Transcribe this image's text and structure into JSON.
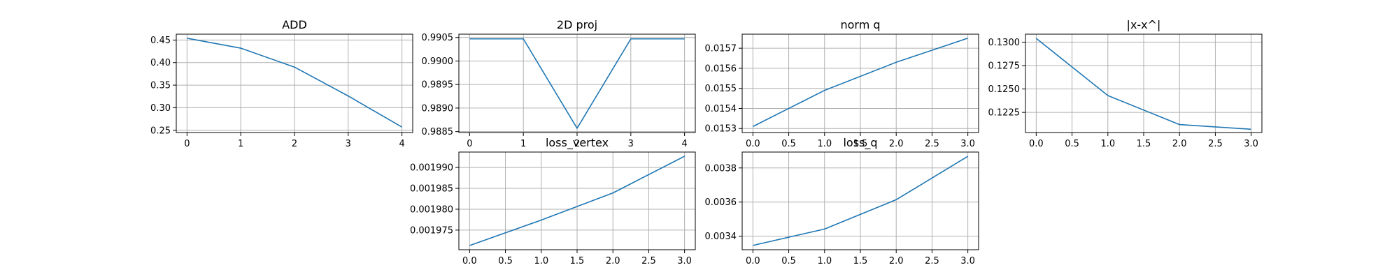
{
  "colors": {
    "series": "#1f77b4",
    "grid": "#b0b0b0",
    "axes": "#000000",
    "background": "#ffffff"
  },
  "chart_data": [
    {
      "type": "line",
      "title": "ADD",
      "grid": true,
      "x": [
        0,
        1,
        2,
        3,
        4
      ],
      "y": [
        0.454,
        0.432,
        0.39,
        0.326,
        0.257
      ],
      "xlim": [
        -0.2,
        4.2
      ],
      "ylim": [
        0.245,
        0.463
      ],
      "xticks": [
        0,
        1,
        2,
        3,
        4
      ],
      "xtick_labels": [
        "0",
        "1",
        "2",
        "3",
        "4"
      ],
      "yticks": [
        0.25,
        0.3,
        0.35,
        0.4,
        0.45
      ],
      "ytick_labels": [
        "0.25",
        "0.30",
        "0.35",
        "0.40",
        "0.45"
      ]
    },
    {
      "type": "line",
      "title": "2D proj",
      "grid": true,
      "x": [
        0,
        1,
        2,
        3,
        4
      ],
      "y": [
        0.99047,
        0.99047,
        0.98857,
        0.99047,
        0.99047
      ],
      "xlim": [
        -0.2,
        4.2
      ],
      "ylim": [
        0.98848,
        0.99057
      ],
      "xticks": [
        0,
        1,
        2,
        3,
        4
      ],
      "xtick_labels": [
        "0",
        "1",
        "2",
        "3",
        "4"
      ],
      "yticks": [
        0.9885,
        0.989,
        0.9895,
        0.99,
        0.9905
      ],
      "ytick_labels": [
        "0.9885",
        "0.9890",
        "0.9895",
        "0.9900",
        "0.9905"
      ]
    },
    {
      "type": "line",
      "title": "norm q",
      "grid": true,
      "x": [
        0,
        1,
        2,
        3
      ],
      "y": [
        0.01531,
        0.01549,
        0.01563,
        0.01575
      ],
      "xlim": [
        -0.15,
        3.15
      ],
      "ylim": [
        0.01528,
        0.01577
      ],
      "xticks": [
        0,
        0.5,
        1,
        1.5,
        2,
        2.5,
        3
      ],
      "xtick_labels": [
        "0.0",
        "0.5",
        "1.0",
        "1.5",
        "2.0",
        "2.5",
        "3.0"
      ],
      "yticks": [
        0.0153,
        0.0154,
        0.0155,
        0.0156,
        0.0157
      ],
      "ytick_labels": [
        "0.0153",
        "0.0154",
        "0.0155",
        "0.0156",
        "0.0157"
      ]
    },
    {
      "type": "line",
      "title": "|x-x^|",
      "grid": true,
      "x": [
        0,
        1,
        2,
        3
      ],
      "y": [
        0.1304,
        0.1243,
        0.1212,
        0.1207
      ],
      "xlim": [
        -0.15,
        3.15
      ],
      "ylim": [
        0.12035,
        0.13085
      ],
      "xticks": [
        0,
        0.5,
        1,
        1.5,
        2,
        2.5,
        3
      ],
      "xtick_labels": [
        "0.0",
        "0.5",
        "1.0",
        "1.5",
        "2.0",
        "2.5",
        "3.0"
      ],
      "yticks": [
        0.1225,
        0.125,
        0.1275,
        0.13
      ],
      "ytick_labels": [
        "0.1225",
        "0.1250",
        "0.1275",
        "0.1300"
      ]
    },
    {
      "type": "line",
      "title": "loss_vertex",
      "grid": true,
      "x": [
        0,
        1,
        2,
        3
      ],
      "y": [
        0.0019713,
        0.0019774,
        0.0019839,
        0.0019927
      ],
      "xlim": [
        -0.15,
        3.15
      ],
      "ylim": [
        0.0019703,
        0.0019937
      ],
      "xticks": [
        0,
        0.5,
        1,
        1.5,
        2,
        2.5,
        3
      ],
      "xtick_labels": [
        "0.0",
        "0.5",
        "1.0",
        "1.5",
        "2.0",
        "2.5",
        "3.0"
      ],
      "yticks": [
        0.001975,
        0.00198,
        0.001985,
        0.00199
      ],
      "ytick_labels": [
        "0.001975",
        "0.001980",
        "0.001985",
        "0.001990"
      ]
    },
    {
      "type": "line",
      "title": "loss_q",
      "grid": true,
      "x": [
        0,
        1,
        2,
        3
      ],
      "y": [
        0.003346,
        0.003442,
        0.003614,
        0.003868
      ],
      "xlim": [
        -0.15,
        3.15
      ],
      "ylim": [
        0.003321,
        0.003893
      ],
      "xticks": [
        0,
        0.5,
        1,
        1.5,
        2,
        2.5,
        3
      ],
      "xtick_labels": [
        "0.0",
        "0.5",
        "1.0",
        "1.5",
        "2.0",
        "2.5",
        "3.0"
      ],
      "yticks": [
        0.0034,
        0.0036,
        0.0038
      ],
      "ytick_labels": [
        "0.0034",
        "0.0036",
        "0.0038"
      ]
    }
  ]
}
